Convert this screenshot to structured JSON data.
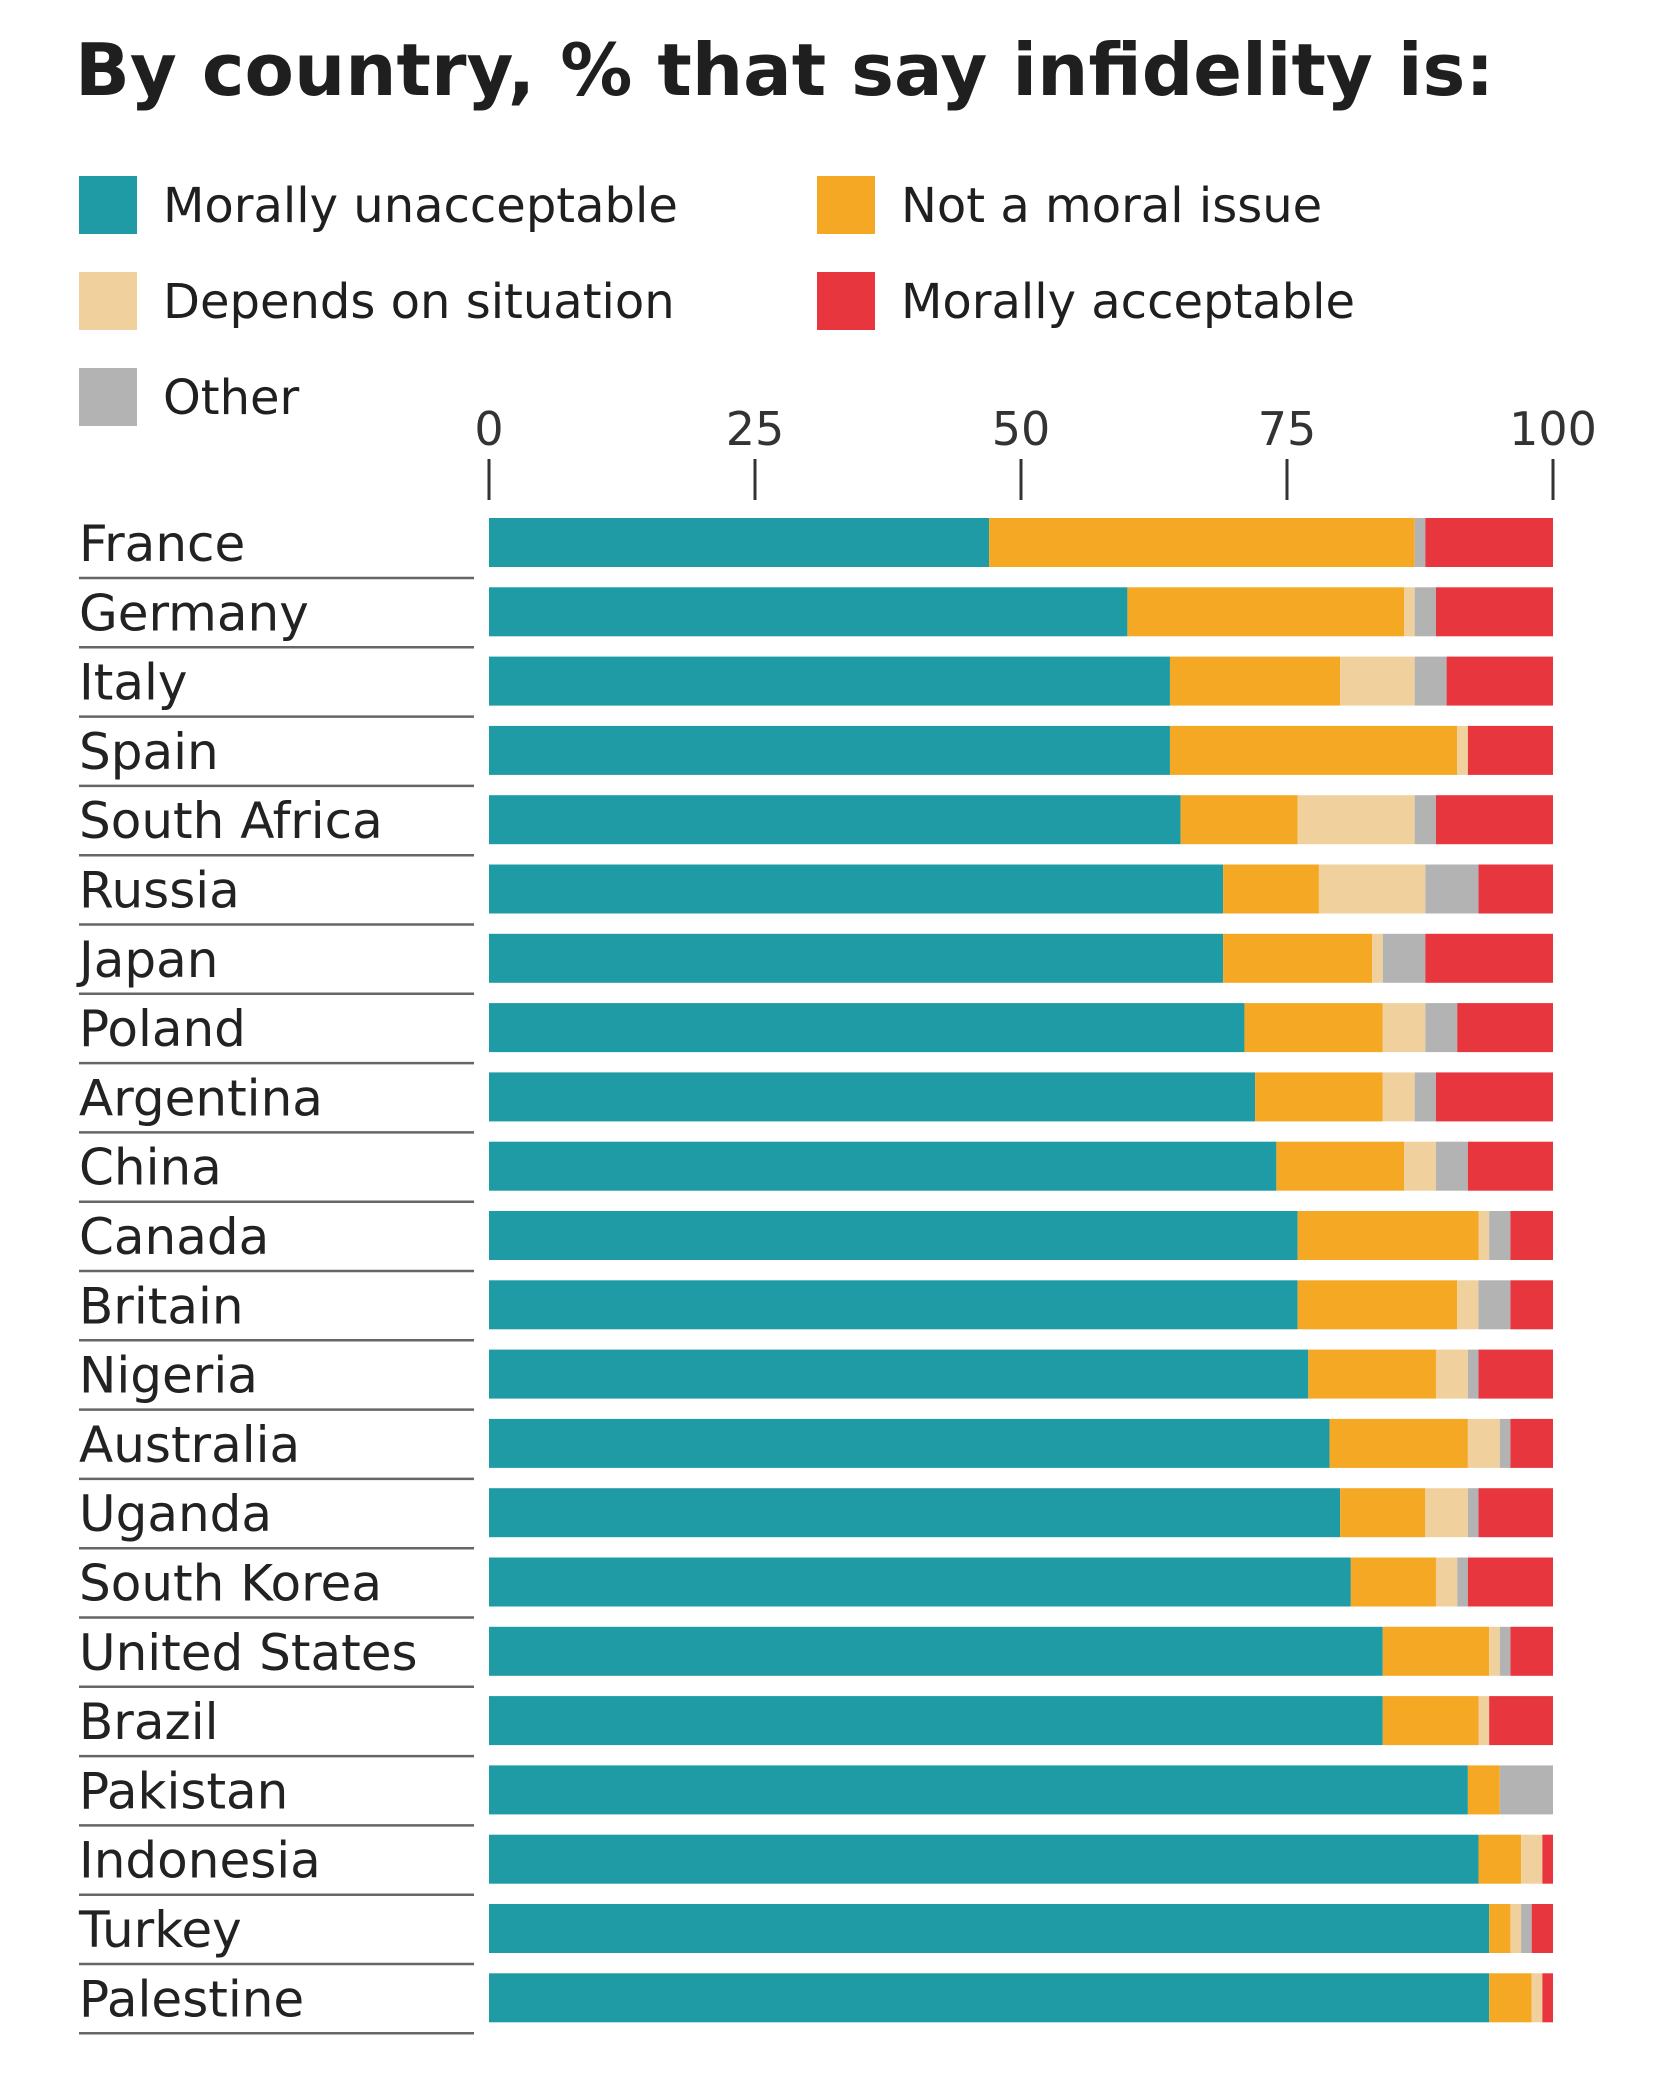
{
  "chart_data": {
    "type": "bar",
    "orientation": "horizontal",
    "stacked": true,
    "title": "By country, % that say infidelity is:",
    "xlabel": "",
    "ylabel": "",
    "xlim": [
      0,
      100
    ],
    "x_ticks": [
      "0",
      "25",
      "50",
      "75",
      "100"
    ],
    "grid": false,
    "legend_position": "top",
    "categories": [
      "France",
      "Germany",
      "Italy",
      "Spain",
      "South Africa",
      "Russia",
      "Japan",
      "Poland",
      "Argentina",
      "China",
      "Canada",
      "Britain",
      "Nigeria",
      "Australia",
      "Uganda",
      "South Korea",
      "United States",
      "Brazil",
      "Pakistan",
      "Indonesia",
      "Turkey",
      "Palestine"
    ],
    "series": [
      {
        "name": "Morally unacceptable",
        "color": "#1f9ba6",
        "values": [
          47,
          60,
          64,
          64,
          65,
          69,
          69,
          71,
          72,
          74,
          76,
          76,
          77,
          79,
          80,
          81,
          84,
          84,
          92,
          93,
          94,
          94
        ]
      },
      {
        "name": "Not a moral issue",
        "color": "#f5a823",
        "values": [
          40,
          26,
          16,
          27,
          11,
          9,
          14,
          13,
          12,
          12,
          17,
          15,
          12,
          13,
          8,
          8,
          10,
          9,
          3,
          4,
          2,
          4
        ]
      },
      {
        "name": "Depends on situation",
        "color": "#f0d19e",
        "values": [
          0,
          1,
          7,
          1,
          11,
          10,
          1,
          4,
          3,
          3,
          1,
          2,
          3,
          3,
          4,
          2,
          1,
          1,
          0,
          2,
          1,
          1
        ]
      },
      {
        "name": "Other",
        "color": "#b3b3b3",
        "values": [
          1,
          2,
          3,
          0,
          2,
          5,
          4,
          3,
          2,
          3,
          2,
          3,
          1,
          1,
          1,
          1,
          1,
          0,
          5,
          0,
          1,
          0
        ]
      },
      {
        "name": "Morally acceptable",
        "color": "#e8363f",
        "values": [
          12,
          11,
          10,
          8,
          11,
          7,
          12,
          9,
          11,
          8,
          4,
          4,
          7,
          4,
          7,
          8,
          4,
          6,
          0,
          1,
          2,
          1
        ]
      }
    ],
    "legend_layout": [
      [
        "Morally unacceptable",
        "Not a moral issue"
      ],
      [
        "Depends on situation",
        "Morally acceptable"
      ],
      [
        "Other"
      ]
    ]
  }
}
